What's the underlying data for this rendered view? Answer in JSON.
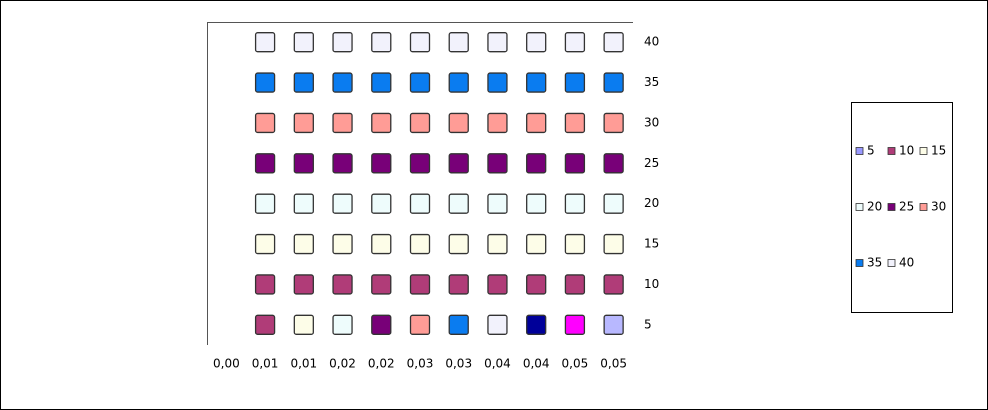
{
  "chart_data": {
    "type": "scatter",
    "categories": [
      "0,00",
      "0,01",
      "0,01",
      "0,02",
      "0,02",
      "0,03",
      "0,03",
      "0,04",
      "0,04",
      "0,05",
      "0,05"
    ],
    "ylim": [
      2.5,
      42.5
    ],
    "yticks": [
      5,
      10,
      15,
      20,
      25,
      30,
      35,
      40
    ],
    "y_axis_side": "right",
    "legend": "right",
    "series": [
      {
        "name": "5",
        "color": "#9999ff",
        "values": [
          null,
          5,
          5,
          5,
          5,
          5,
          5,
          5,
          5,
          5,
          5
        ],
        "point_colors": [
          null,
          "#b03c78",
          "#fdfde8",
          "#eefcfc",
          "#780078",
          "#ff9c96",
          "#0a7cf0",
          "#f2f2fc",
          "#000099",
          "#ff00ff",
          "#b8b8ff"
        ]
      },
      {
        "name": "10",
        "color": "#b03c78",
        "values": [
          null,
          10,
          10,
          10,
          10,
          10,
          10,
          10,
          10,
          10,
          10
        ]
      },
      {
        "name": "15",
        "color": "#fdfde8",
        "values": [
          null,
          15,
          15,
          15,
          15,
          15,
          15,
          15,
          15,
          15,
          15
        ]
      },
      {
        "name": "20",
        "color": "#eefcfc",
        "values": [
          null,
          20,
          20,
          20,
          20,
          20,
          20,
          20,
          20,
          20,
          20
        ]
      },
      {
        "name": "25",
        "color": "#780078",
        "values": [
          null,
          25,
          25,
          25,
          25,
          25,
          25,
          25,
          25,
          25,
          25
        ]
      },
      {
        "name": "30",
        "color": "#ff9c96",
        "values": [
          null,
          30,
          30,
          30,
          30,
          30,
          30,
          30,
          30,
          30,
          30
        ]
      },
      {
        "name": "35",
        "color": "#0a7cf0",
        "values": [
          null,
          35,
          35,
          35,
          35,
          35,
          35,
          35,
          35,
          35,
          35
        ]
      },
      {
        "name": "40",
        "color": "#f2f2fc",
        "values": [
          null,
          40,
          40,
          40,
          40,
          40,
          40,
          40,
          40,
          40,
          40
        ]
      }
    ]
  }
}
